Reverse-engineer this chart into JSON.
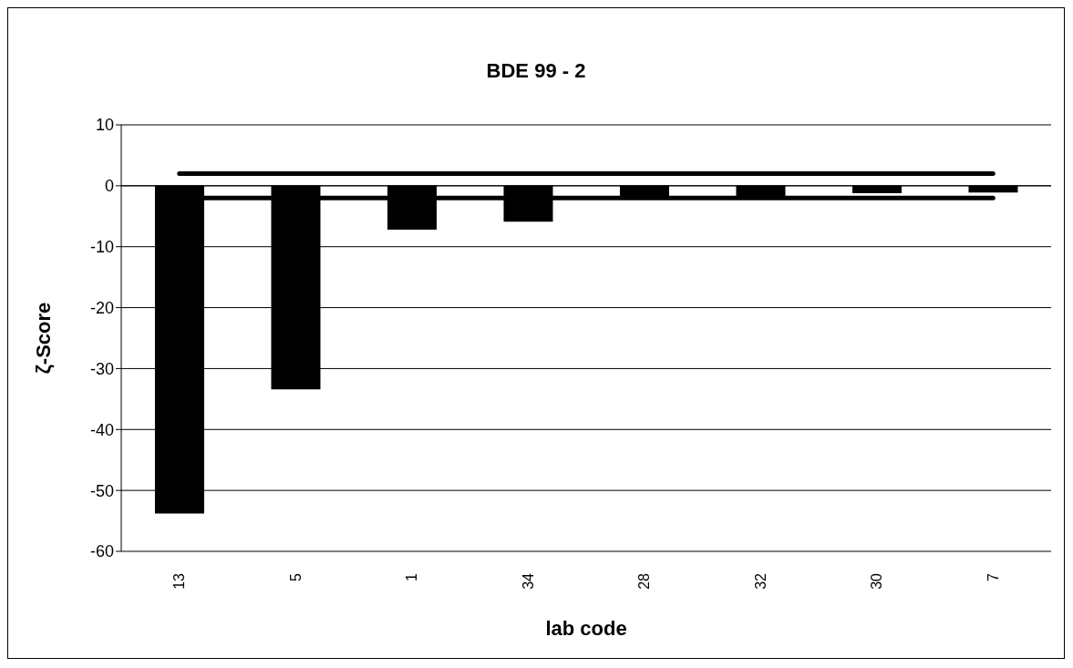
{
  "chart_data": {
    "type": "bar",
    "title": "BDE 99 - 2",
    "xlabel": "lab code",
    "ylabel": "ζ-Score",
    "categories": [
      "13",
      "5",
      "1",
      "34",
      "28",
      "32",
      "30",
      "7"
    ],
    "values": [
      -53.8,
      -33.4,
      -7.2,
      -5.9,
      -1.7,
      -1.7,
      -1.2,
      -1.1
    ],
    "color": "#000000",
    "ylim": [
      -60,
      10
    ],
    "yticks": [
      -60,
      -50,
      -40,
      -30,
      -20,
      -10,
      0,
      10
    ],
    "grid": "y",
    "ref_lines": [
      {
        "axis": "y",
        "value": 2,
        "color": "#000000"
      },
      {
        "axis": "y",
        "value": -2,
        "color": "#000000"
      }
    ]
  }
}
